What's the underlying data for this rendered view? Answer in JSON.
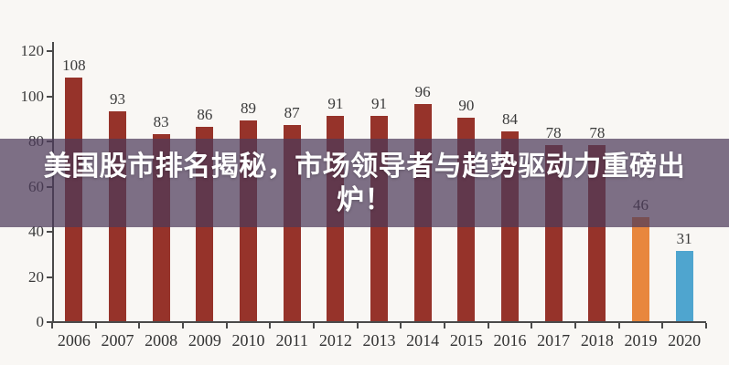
{
  "overlay": {
    "title": "美国股市排名揭秘，市场领导者与趋势驱动力重磅出炉！",
    "lines": [
      "美国股市排名揭秘，市场领导者与趋势驱动力重磅出",
      "炉！"
    ],
    "bg_color": "#4c3a5a",
    "bg_opacity": 0.72,
    "text_color": "#ffffff"
  },
  "chart_data": {
    "type": "bar",
    "title": "",
    "xlabel": "",
    "ylabel": "",
    "categories": [
      "2006",
      "2007",
      "2008",
      "2009",
      "2010",
      "2011",
      "2012",
      "2013",
      "2014",
      "2015",
      "2016",
      "2017",
      "2018",
      "2019",
      "2020"
    ],
    "values": [
      108,
      93,
      83,
      86,
      89,
      87,
      91,
      91,
      96,
      90,
      84,
      78,
      78,
      46,
      31
    ],
    "bar_colors": [
      "#96332a",
      "#96332a",
      "#96332a",
      "#96332a",
      "#96332a",
      "#96332a",
      "#96332a",
      "#96332a",
      "#96332a",
      "#96332a",
      "#96332a",
      "#96332a",
      "#96332a",
      "#e8873d",
      "#4fa5cf"
    ],
    "default_bar_color": "#96332a",
    "color_2019": "#e8873d",
    "color_2020": "#4fa5cf",
    "ylim": [
      0,
      120
    ],
    "yticks": [
      0,
      20,
      40,
      60,
      80,
      100,
      120
    ],
    "grid": false,
    "legend": null,
    "axis_color": "#4a4a4a",
    "tick_label_color": "#3b3b3b",
    "background": "#f9f7f4"
  }
}
